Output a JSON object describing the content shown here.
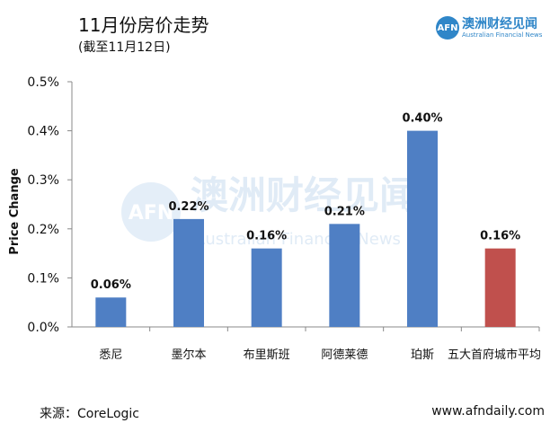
{
  "header": {
    "title": "11月份房价走势",
    "subtitle": "(截至11月12日)"
  },
  "logo": {
    "mark": "AFN",
    "name_cn": "澳洲财经见闻",
    "name_en": "Australian Financial News"
  },
  "watermark": {
    "name_cn": "澳洲财经见闻",
    "name_en": "Australian Financial News"
  },
  "chart_data": {
    "type": "bar",
    "categories": [
      "悉尼",
      "墨尔本",
      "布里斯班",
      "阿德莱德",
      "珀斯",
      "五大首府城市平均"
    ],
    "values": [
      0.06,
      0.22,
      0.16,
      0.21,
      0.4,
      0.16
    ],
    "value_labels": [
      "0.06%",
      "0.22%",
      "0.16%",
      "0.21%",
      "0.40%",
      "0.16%"
    ],
    "colors": [
      "#4f7fc4",
      "#4f7fc4",
      "#4f7fc4",
      "#4f7fc4",
      "#4f7fc4",
      "#c0504d"
    ],
    "ylabel": "Price Change",
    "ylim": [
      0,
      0.5
    ],
    "yticks": [
      0,
      0.1,
      0.2,
      0.3,
      0.4,
      0.5
    ],
    "ytick_labels": [
      "0.0%",
      "0.1%",
      "0.2%",
      "0.3%",
      "0.4%",
      "0.5%"
    ],
    "grid": false,
    "legend": "none"
  },
  "footer": {
    "source": "来源：CoreLogic",
    "website": "www.afndaily.com"
  }
}
